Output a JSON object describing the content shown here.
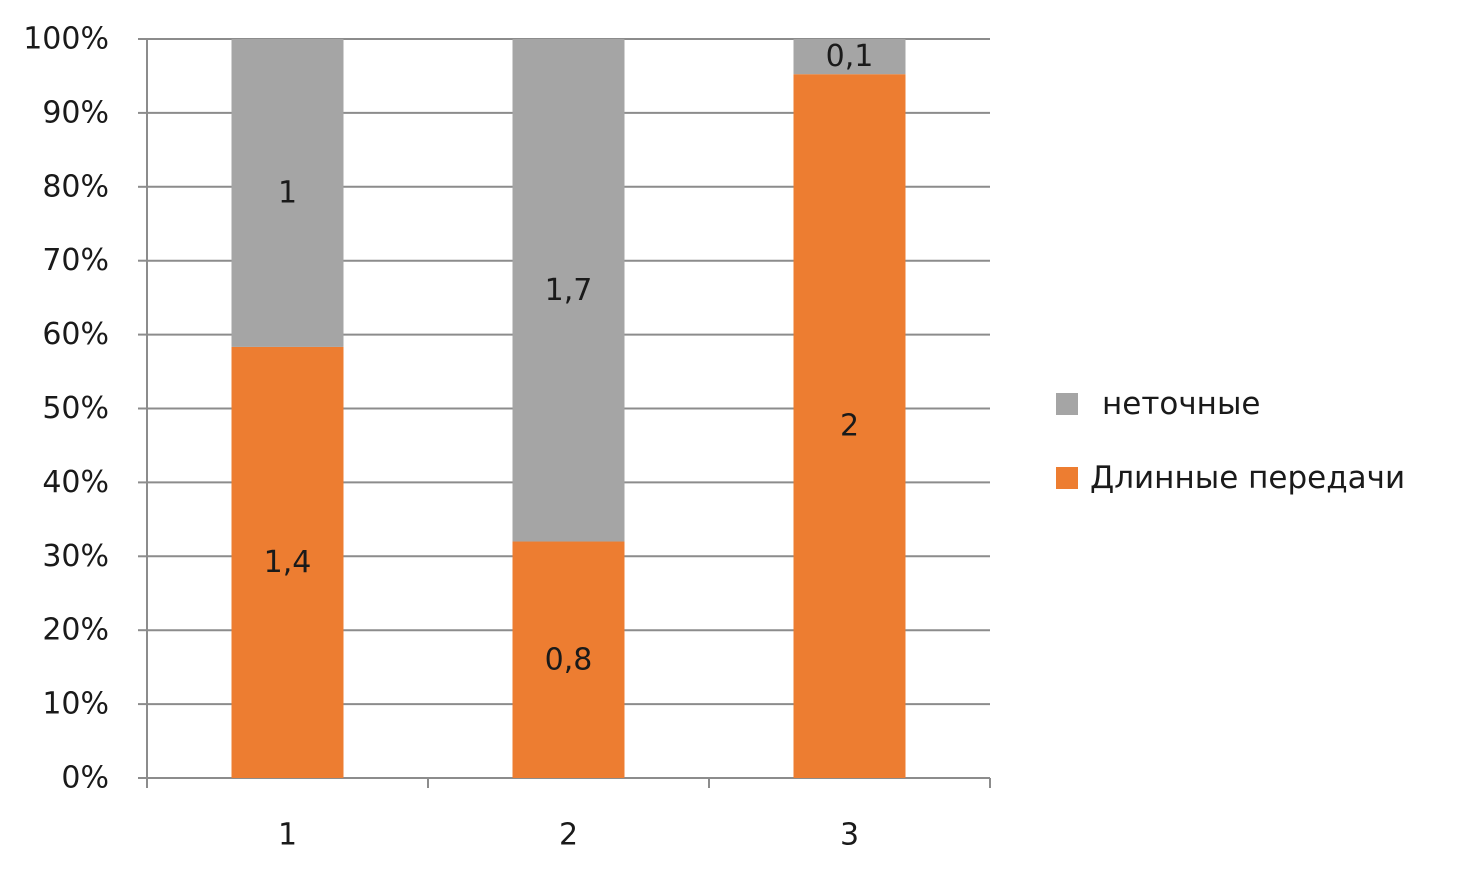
{
  "chart_data": {
    "type": "bar",
    "stacked": "percent",
    "categories": [
      "1",
      "2",
      "3"
    ],
    "series": [
      {
        "name": "Длинные передачи",
        "color": "#ED7D31",
        "values": [
          1.4,
          0.8,
          2
        ],
        "labels": [
          "1,4",
          "0,8",
          "2"
        ]
      },
      {
        "name": "неточные",
        "color": "#A5A5A5",
        "values": [
          1,
          1.7,
          0.1
        ],
        "labels": [
          "1",
          "1,7",
          "0,1"
        ]
      }
    ],
    "y_ticks": [
      "0%",
      "10%",
      "20%",
      "30%",
      "40%",
      "50%",
      "60%",
      "70%",
      "80%",
      "90%",
      "100%"
    ],
    "ylim": [
      0,
      100
    ],
    "grid": true,
    "legend_position": "right",
    "legend_order": [
      1,
      0
    ],
    "title": "",
    "xlabel": "",
    "ylabel": ""
  }
}
